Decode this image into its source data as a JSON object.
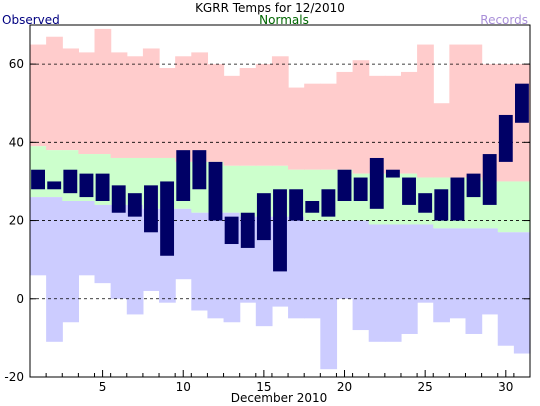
{
  "chart_data": {
    "type": "bar",
    "title": "KGRR Temps for 12/2010",
    "xlabel": "December 2010",
    "ylabel": "",
    "xlim": [
      1,
      31
    ],
    "ylim": [
      -20,
      70
    ],
    "y_ticks": [
      -20,
      0,
      20,
      40,
      60
    ],
    "x_ticks": [
      5,
      10,
      15,
      20,
      25,
      30
    ],
    "gridlines_y": [
      0,
      20,
      40,
      60
    ],
    "legend": {
      "observed_label": "Observed",
      "normals_label": "Normals",
      "records_label": "Records",
      "placement": "top"
    },
    "colors": {
      "observed": "#000066",
      "observed_text": "#000080",
      "normals_band": "#ccffcc",
      "normals_text": "#006600",
      "record_high_band": "#ffcccc",
      "record_low_band": "#ccccff",
      "records_text": "#a98fd8"
    },
    "days": [
      1,
      2,
      3,
      4,
      5,
      6,
      7,
      8,
      9,
      10,
      11,
      12,
      13,
      14,
      15,
      16,
      17,
      18,
      19,
      20,
      21,
      22,
      23,
      24,
      25,
      26,
      27,
      28,
      29,
      30,
      31
    ],
    "record_high": [
      65,
      67,
      64,
      63,
      69,
      63,
      62,
      64,
      59,
      62,
      63,
      60,
      57,
      59,
      60,
      62,
      54,
      55,
      55,
      58,
      61,
      57,
      57,
      58,
      65,
      50,
      65,
      65,
      60,
      60,
      60
    ],
    "normal_high": [
      39,
      38,
      38,
      37,
      37,
      36,
      36,
      36,
      36,
      35,
      35,
      35,
      34,
      34,
      34,
      34,
      33,
      33,
      33,
      33,
      32,
      32,
      32,
      32,
      31,
      31,
      31,
      31,
      30,
      30,
      30
    ],
    "normal_low": [
      26,
      26,
      25,
      25,
      24,
      24,
      24,
      23,
      23,
      23,
      22,
      22,
      22,
      21,
      21,
      21,
      21,
      20,
      20,
      20,
      20,
      19,
      19,
      19,
      19,
      18,
      18,
      18,
      18,
      17,
      17
    ],
    "record_low": [
      6,
      -11,
      -6,
      6,
      4,
      0,
      -4,
      2,
      -1,
      5,
      -3,
      -5,
      -6,
      -1,
      -7,
      -2,
      -5,
      -5,
      -18,
      0,
      -8,
      -11,
      -11,
      -9,
      -1,
      -6,
      -5,
      -9,
      -4,
      -12,
      -14
    ],
    "observed_high": [
      33,
      30,
      33,
      32,
      32,
      29,
      27,
      29,
      30,
      38,
      38,
      35,
      21,
      22,
      27,
      28,
      28,
      25,
      28,
      33,
      31,
      36,
      33,
      31,
      27,
      28,
      31,
      32,
      37,
      47,
      55
    ],
    "observed_low": [
      28,
      28,
      27,
      26,
      25,
      22,
      21,
      17,
      11,
      25,
      28,
      20,
      14,
      13,
      15,
      7,
      20,
      22,
      21,
      25,
      25,
      23,
      31,
      24,
      22,
      20,
      20,
      26,
      24,
      35,
      45
    ]
  }
}
